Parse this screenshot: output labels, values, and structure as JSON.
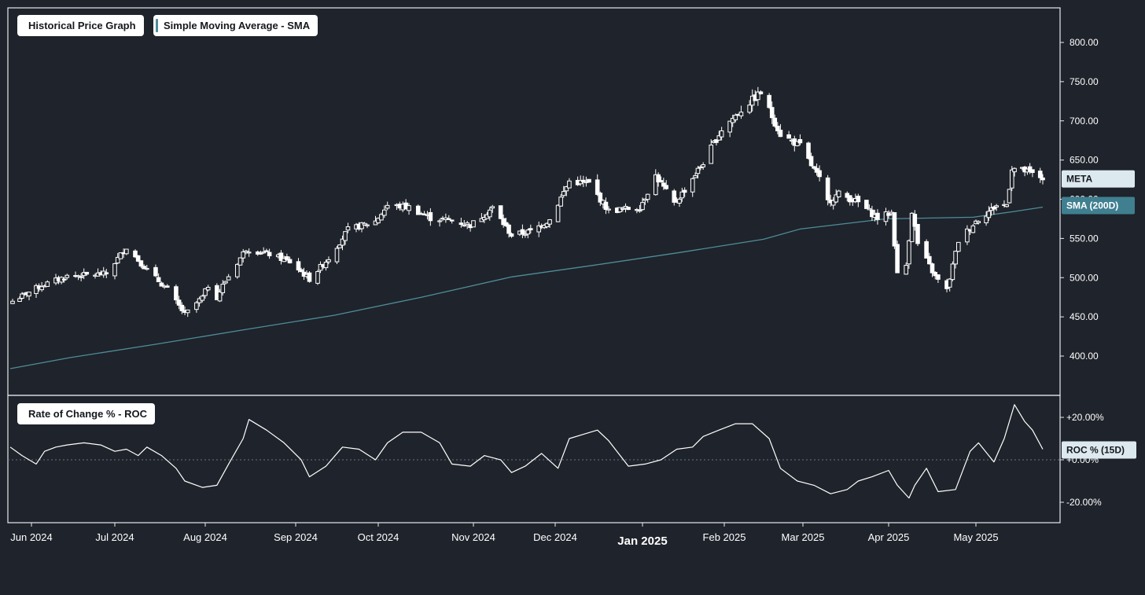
{
  "legend": {
    "price": "Historical Price Graph",
    "sma": "Simple Moving Average - SMA",
    "roc": "Rate of Change % - ROC"
  },
  "colors": {
    "background": "#1f232b",
    "border": "#e6ebef",
    "candle": "#ffffff",
    "sma_line": "#4e8d99",
    "meta_tag_bg": "#dce9ef",
    "sma_tag_bg": "#3f7f90",
    "roc_tag_bg": "#dce9ef",
    "roc_line": "#ffffff"
  },
  "tags": {
    "meta": "META",
    "sma": "SMA (200D)",
    "roc": "ROC % (15D)"
  },
  "chart_data": [
    {
      "type": "candlestick",
      "ylim": [
        350,
        835
      ],
      "yticks": [
        "400.00",
        "450.00",
        "500.00",
        "550.00",
        "600.00",
        "650.00",
        "700.00",
        "750.00",
        "800.00"
      ],
      "x_axis_labels": [
        "Jun 2024",
        "Jul 2024",
        "Aug 2024",
        "Sep 2024",
        "Oct 2024",
        "Nov 2024",
        "Dec 2024",
        "Jan 2025",
        "Feb 2025",
        "Mar 2025",
        "Apr 2025",
        "May 2025"
      ],
      "candle_series": {
        "name": "META",
        "anchors": [
          [
            "2024-05-24",
            470
          ],
          [
            "2024-06-05",
            490
          ],
          [
            "2024-06-14",
            502
          ],
          [
            "2024-06-28",
            505
          ],
          [
            "2024-07-05",
            539
          ],
          [
            "2024-07-12",
            510
          ],
          [
            "2024-07-19",
            485
          ],
          [
            "2024-07-25",
            453
          ],
          [
            "2024-07-31",
            475
          ],
          [
            "2024-08-02",
            490
          ],
          [
            "2024-08-05",
            475
          ],
          [
            "2024-08-07",
            490
          ],
          [
            "2024-08-15",
            537
          ],
          [
            "2024-08-23",
            530
          ],
          [
            "2024-08-30",
            520
          ],
          [
            "2024-09-06",
            498
          ],
          [
            "2024-09-13",
            525
          ],
          [
            "2024-09-20",
            561
          ],
          [
            "2024-09-30",
            572
          ],
          [
            "2024-10-04",
            592
          ],
          [
            "2024-10-11",
            590
          ],
          [
            "2024-10-18",
            576
          ],
          [
            "2024-10-25",
            573
          ],
          [
            "2024-10-31",
            567
          ],
          [
            "2024-11-08",
            589
          ],
          [
            "2024-11-15",
            554
          ],
          [
            "2024-11-22",
            559
          ],
          [
            "2024-11-29",
            574
          ],
          [
            "2024-12-06",
            623
          ],
          [
            "2024-12-13",
            620
          ],
          [
            "2024-12-20",
            585
          ],
          [
            "2024-12-31",
            590
          ],
          [
            "2025-01-06",
            630
          ],
          [
            "2025-01-13",
            594
          ],
          [
            "2025-01-17",
            612
          ],
          [
            "2025-01-24",
            647
          ],
          [
            "2025-01-31",
            689
          ],
          [
            "2025-02-07",
            714
          ],
          [
            "2025-02-14",
            736
          ],
          [
            "2025-02-21",
            683
          ],
          [
            "2025-02-28",
            668
          ],
          [
            "2025-03-07",
            625
          ],
          [
            "2025-03-10",
            597
          ],
          [
            "2025-03-14",
            607
          ],
          [
            "2025-03-21",
            596
          ],
          [
            "2025-03-28",
            576
          ],
          [
            "2025-04-02",
            583
          ],
          [
            "2025-04-04",
            504
          ],
          [
            "2025-04-07",
            516
          ],
          [
            "2025-04-09",
            585
          ],
          [
            "2025-04-11",
            543
          ],
          [
            "2025-04-17",
            501
          ],
          [
            "2025-04-21",
            484
          ],
          [
            "2025-04-25",
            547
          ],
          [
            "2025-05-01",
            572
          ],
          [
            "2025-05-09",
            592
          ],
          [
            "2025-05-13",
            593
          ],
          [
            "2025-05-15",
            640
          ],
          [
            "2025-05-20",
            636
          ],
          [
            "2025-05-27",
            627
          ]
        ]
      },
      "sma_series": {
        "name": "SMA (200D)",
        "points": [
          [
            "2024-05-23",
            384
          ],
          [
            "2024-06-15",
            398
          ],
          [
            "2024-07-15",
            415
          ],
          [
            "2024-08-15",
            434
          ],
          [
            "2024-09-15",
            452
          ],
          [
            "2024-10-15",
            475
          ],
          [
            "2024-11-15",
            501
          ],
          [
            "2024-12-15",
            516
          ],
          [
            "2025-01-15",
            532
          ],
          [
            "2025-02-15",
            549
          ],
          [
            "2025-02-28",
            562
          ],
          [
            "2025-03-31",
            575
          ],
          [
            "2025-04-30",
            577
          ],
          [
            "2025-05-15",
            584
          ],
          [
            "2025-05-27",
            590
          ]
        ]
      }
    },
    {
      "type": "line",
      "name": "ROC % (15D)",
      "ylim": [
        -28,
        30
      ],
      "yticks": [
        "+20.00%",
        "+0.00%",
        "-20.00%"
      ],
      "x": [
        "2024-05-23",
        "2024-05-28",
        "2024-06-03",
        "2024-06-06",
        "2024-06-10",
        "2024-06-14",
        "2024-06-20",
        "2024-06-26",
        "2024-07-01",
        "2024-07-05",
        "2024-07-09",
        "2024-07-12",
        "2024-07-17",
        "2024-07-22",
        "2024-07-25",
        "2024-07-31",
        "2024-08-05",
        "2024-08-09",
        "2024-08-14",
        "2024-08-16",
        "2024-08-22",
        "2024-08-28",
        "2024-09-03",
        "2024-09-06",
        "2024-09-12",
        "2024-09-18",
        "2024-09-24",
        "2024-09-30",
        "2024-10-04",
        "2024-10-09",
        "2024-10-15",
        "2024-10-21",
        "2024-10-25",
        "2024-10-31",
        "2024-11-05",
        "2024-11-11",
        "2024-11-15",
        "2024-11-20",
        "2024-11-26",
        "2024-12-02",
        "2024-12-06",
        "2024-12-11",
        "2024-12-16",
        "2024-12-20",
        "2024-12-27",
        "2025-01-02",
        "2025-01-08",
        "2025-01-14",
        "2025-01-20",
        "2025-01-24",
        "2025-01-30",
        "2025-02-05",
        "2025-02-11",
        "2025-02-17",
        "2025-02-21",
        "2025-02-27",
        "2025-03-05",
        "2025-03-11",
        "2025-03-17",
        "2025-03-21",
        "2025-03-26",
        "2025-04-01",
        "2025-04-04",
        "2025-04-08",
        "2025-04-10",
        "2025-04-14",
        "2025-04-18",
        "2025-04-24",
        "2025-04-29",
        "2025-05-02",
        "2025-05-08",
        "2025-05-12",
        "2025-05-16",
        "2025-05-20",
        "2025-05-23",
        "2025-05-27"
      ],
      "y": [
        6,
        2,
        -2,
        4,
        6,
        7,
        8,
        7,
        4,
        5,
        2,
        6,
        2,
        -4,
        -10,
        -13,
        -12,
        -2,
        10,
        19,
        14,
        8,
        0,
        -8,
        -3,
        6,
        5,
        0,
        8,
        13,
        13,
        8,
        -2,
        -3,
        2,
        0,
        -6,
        -3,
        3,
        -4,
        10,
        12,
        14,
        9,
        -3,
        -2,
        0,
        5,
        6,
        11,
        14,
        17,
        17,
        10,
        -4,
        -10,
        -12,
        -16,
        -14,
        -10,
        -8,
        -5,
        -12,
        -18,
        -12,
        -4,
        -15,
        -14,
        4,
        8,
        -1,
        10,
        26,
        18,
        14,
        5
      ]
    }
  ]
}
